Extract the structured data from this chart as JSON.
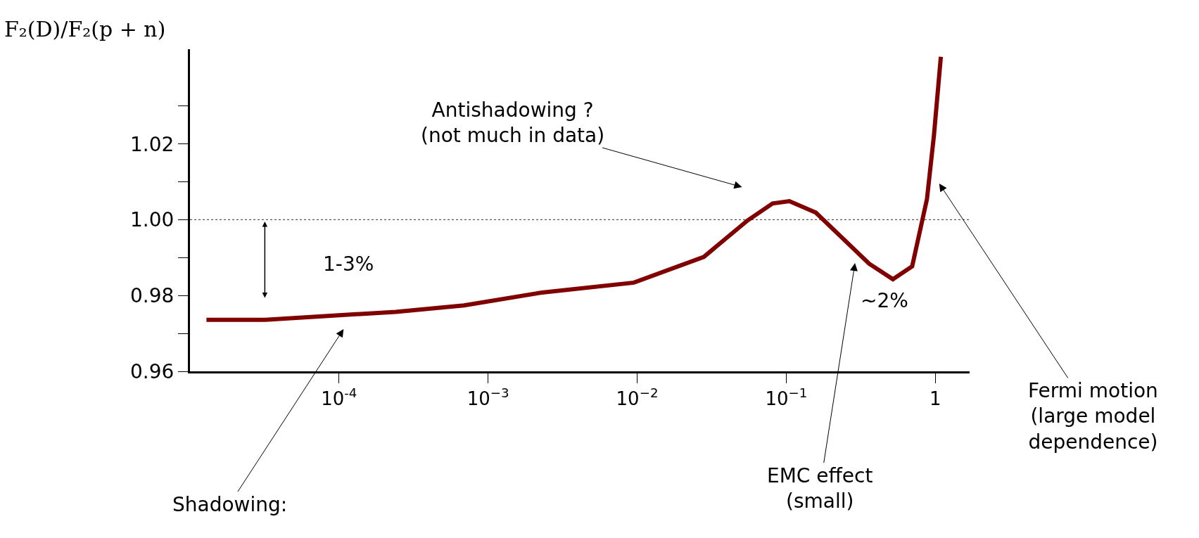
{
  "chart_data": {
    "type": "line",
    "ylabel": "F₂(D)/F₂(p + n)",
    "x": [
      1.29e-05,
      3.2e-05,
      0.0001,
      0.00024,
      0.00069,
      0.0023,
      0.0095,
      0.028,
      0.055,
      0.081,
      0.105,
      0.158,
      0.36,
      0.52,
      0.7,
      0.88,
      0.98,
      1.09
    ],
    "series": [
      {
        "color": "#800000",
        "values": [
          0.9736,
          0.9736,
          0.9748,
          0.9757,
          0.9774,
          0.9808,
          0.9834,
          0.9902,
          0.9998,
          1.0043,
          1.0049,
          1.0019,
          0.9884,
          0.9843,
          0.9877,
          1.0055,
          1.0223,
          1.043
        ]
      }
    ],
    "log": "x",
    "xlim": [
      1e-05,
      1.7
    ],
    "xticks": [
      {
        "value": 0.0001,
        "label": "10$^{-4}$"
      },
      {
        "value": 0.001,
        "label": "10$^{−3}$"
      },
      {
        "value": 0.01,
        "label": "10$^{−2}$"
      },
      {
        "value": 0.1,
        "label": "10$^{−1}$"
      },
      1
    ],
    "ylim": [
      0.96,
      1.045
    ],
    "yticks": [
      0.96,
      {
        "value": 0.97,
        "label": null
      },
      0.98,
      {
        "value": 0.99,
        "label": null
      },
      {
        "value": 1.0,
        "label": "1.00"
      },
      {
        "value": 1.01,
        "label": null
      },
      1.02,
      {
        "value": 1.03,
        "label": null
      }
    ],
    "grid": false,
    "marker": "none",
    "line_style": "solid",
    "ref_lines": [
      {
        "axis": "y",
        "value": 1.0,
        "color": "#555555",
        "line_style": "dotted"
      }
    ],
    "annotations": [
      "Antishadowing ?\n(not much in data)",
      "Shadowing:",
      "EMC effect\n(small)",
      "Fermi motion\n(large model\ndependence)",
      "~2%",
      "1-3%"
    ]
  }
}
